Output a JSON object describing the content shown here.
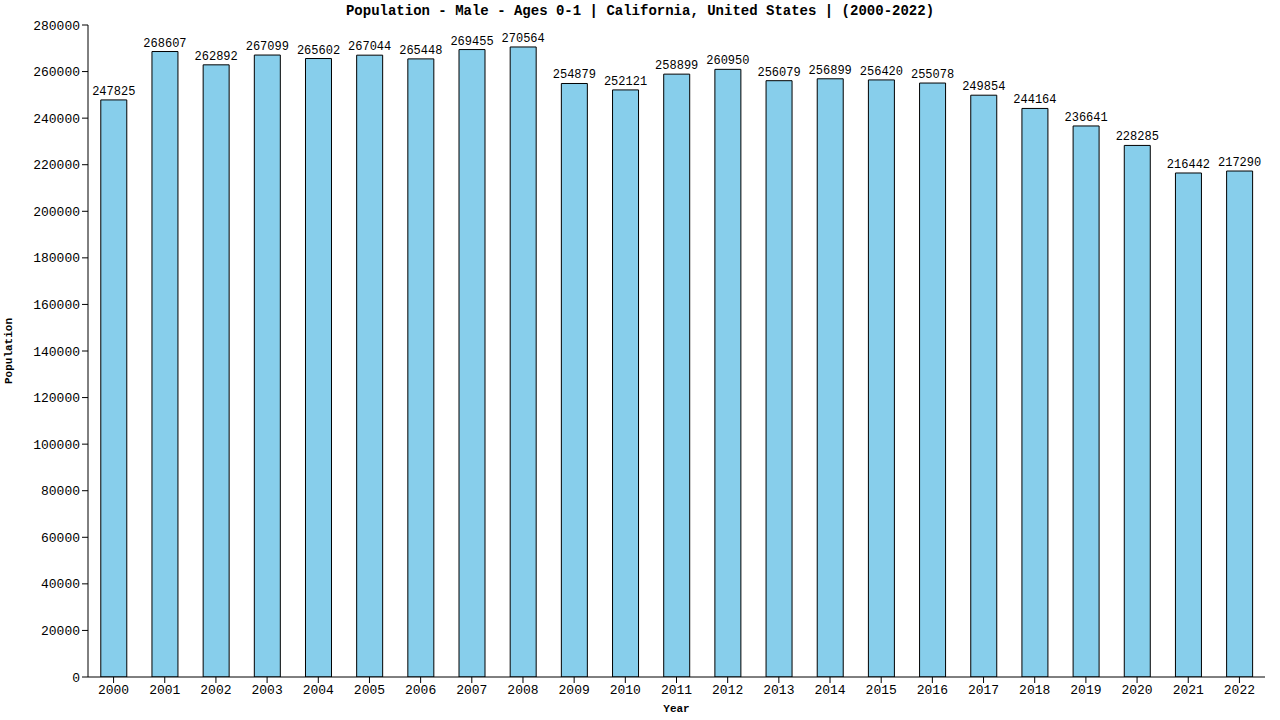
{
  "chart_data": {
    "type": "bar",
    "title": "Population - Male - Ages 0-1 | California, United States |  (2000-2022)",
    "x_label": "Year",
    "y_label": "Population",
    "categories": [
      "2000",
      "2001",
      "2002",
      "2003",
      "2004",
      "2005",
      "2006",
      "2007",
      "2008",
      "2009",
      "2010",
      "2011",
      "2012",
      "2013",
      "2014",
      "2015",
      "2016",
      "2017",
      "2018",
      "2019",
      "2020",
      "2021",
      "2022"
    ],
    "values": [
      247825,
      268607,
      262892,
      267099,
      265602,
      267044,
      265448,
      269455,
      270564,
      254879,
      252121,
      258899,
      260950,
      256079,
      256899,
      256420,
      255078,
      249854,
      244164,
      236641,
      228285,
      216442,
      217290
    ],
    "color": "#87ceeb",
    "ylim": [
      0,
      280000
    ],
    "yticks": [
      0,
      20000,
      40000,
      60000,
      80000,
      100000,
      120000,
      140000,
      160000,
      180000,
      200000,
      220000,
      240000,
      260000,
      280000
    ],
    "grid": false,
    "data_labels": true
  }
}
